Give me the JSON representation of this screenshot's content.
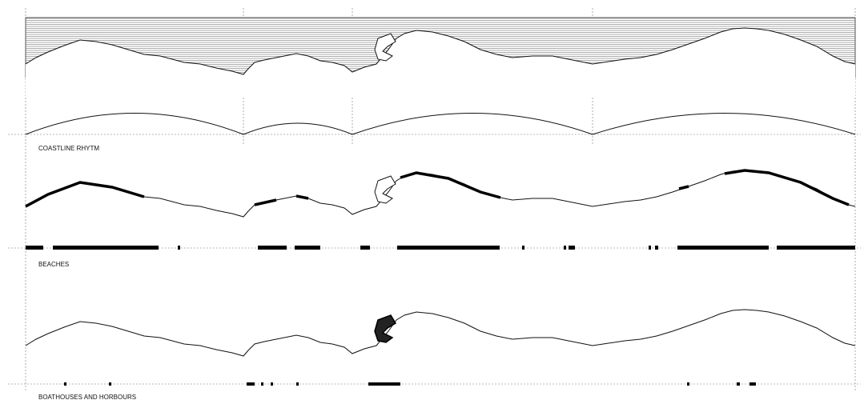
{
  "sections": [
    {
      "label": "COASTLINE RHYTM"
    },
    {
      "label": "BEACHES"
    },
    {
      "label": "BOATHOUSES AND HORBOURS"
    }
  ]
}
